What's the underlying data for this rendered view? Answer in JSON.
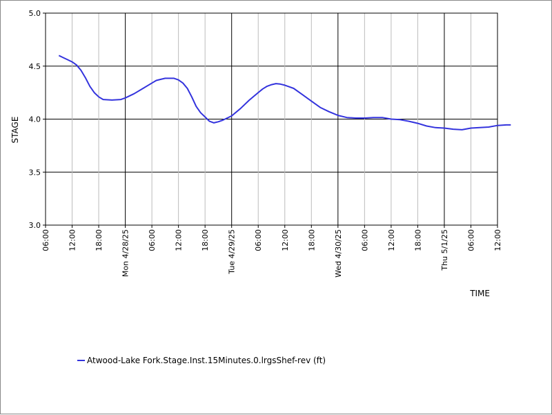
{
  "chart_data": {
    "type": "line",
    "xlabel": "TIME",
    "ylabel": "STAGE",
    "ylim": [
      3.0,
      5.0
    ],
    "y_ticks": [
      "3.0",
      "3.5",
      "4.0",
      "4.5",
      "5.0"
    ],
    "xlim": [
      "2025-04-27T06:00",
      "2025-05-01T12:00"
    ],
    "x_tick_labels": [
      "06:00",
      "12:00",
      "18:00",
      "Mon 4/28/25",
      "06:00",
      "12:00",
      "18:00",
      "Tue 4/29/25",
      "06:00",
      "12:00",
      "18:00",
      "Wed 4/30/25",
      "06:00",
      "12:00",
      "18:00",
      "Thu 5/1/25",
      "06:00",
      "12:00"
    ],
    "grid": true,
    "legend_position": "bottom-left",
    "colors": {
      "series": "#3333dd",
      "major_grid": "#000000",
      "minor_grid": "#bbbbbb"
    },
    "series": [
      {
        "name": "Atwood-Lake Fork.Stage.Inst.15Minutes.0.lrgsShef-rev (ft)",
        "points": [
          [
            "2025-04-27T09:00",
            4.6
          ],
          [
            "2025-04-27T10:00",
            4.58
          ],
          [
            "2025-04-27T11:00",
            4.56
          ],
          [
            "2025-04-27T12:00",
            4.54
          ],
          [
            "2025-04-27T13:00",
            4.51
          ],
          [
            "2025-04-27T14:00",
            4.46
          ],
          [
            "2025-04-27T15:00",
            4.39
          ],
          [
            "2025-04-27T16:00",
            4.31
          ],
          [
            "2025-04-27T17:00",
            4.25
          ],
          [
            "2025-04-27T18:00",
            4.21
          ],
          [
            "2025-04-27T19:00",
            4.185
          ],
          [
            "2025-04-27T21:00",
            4.18
          ],
          [
            "2025-04-27T23:00",
            4.185
          ],
          [
            "2025-04-28T00:00",
            4.2
          ],
          [
            "2025-04-28T02:00",
            4.24
          ],
          [
            "2025-04-28T04:00",
            4.29
          ],
          [
            "2025-04-28T06:00",
            4.34
          ],
          [
            "2025-04-28T07:00",
            4.365
          ],
          [
            "2025-04-28T08:00",
            4.375
          ],
          [
            "2025-04-28T09:00",
            4.385
          ],
          [
            "2025-04-28T11:00",
            4.385
          ],
          [
            "2025-04-28T12:00",
            4.37
          ],
          [
            "2025-04-28T13:00",
            4.34
          ],
          [
            "2025-04-28T14:00",
            4.29
          ],
          [
            "2025-04-28T15:00",
            4.21
          ],
          [
            "2025-04-28T16:00",
            4.12
          ],
          [
            "2025-04-28T17:00",
            4.06
          ],
          [
            "2025-04-28T18:00",
            4.02
          ],
          [
            "2025-04-28T19:00",
            3.98
          ],
          [
            "2025-04-28T20:00",
            3.965
          ],
          [
            "2025-04-28T21:00",
            3.975
          ],
          [
            "2025-04-28T22:00",
            3.99
          ],
          [
            "2025-04-29T00:00",
            4.03
          ],
          [
            "2025-04-29T02:00",
            4.1
          ],
          [
            "2025-04-29T04:00",
            4.18
          ],
          [
            "2025-04-29T06:00",
            4.25
          ],
          [
            "2025-04-29T07:00",
            4.285
          ],
          [
            "2025-04-29T08:00",
            4.31
          ],
          [
            "2025-04-29T09:00",
            4.325
          ],
          [
            "2025-04-29T10:00",
            4.335
          ],
          [
            "2025-04-29T11:00",
            4.33
          ],
          [
            "2025-04-29T12:00",
            4.32
          ],
          [
            "2025-04-29T14:00",
            4.29
          ],
          [
            "2025-04-29T16:00",
            4.23
          ],
          [
            "2025-04-29T18:00",
            4.17
          ],
          [
            "2025-04-29T20:00",
            4.11
          ],
          [
            "2025-04-29T22:00",
            4.07
          ],
          [
            "2025-04-30T00:00",
            4.035
          ],
          [
            "2025-04-30T02:00",
            4.015
          ],
          [
            "2025-04-30T04:00",
            4.01
          ],
          [
            "2025-04-30T06:00",
            4.01
          ],
          [
            "2025-04-30T08:00",
            4.015
          ],
          [
            "2025-04-30T10:00",
            4.015
          ],
          [
            "2025-04-30T12:00",
            4.0
          ],
          [
            "2025-04-30T14:00",
            3.995
          ],
          [
            "2025-04-30T16:00",
            3.98
          ],
          [
            "2025-04-30T18:00",
            3.96
          ],
          [
            "2025-04-30T20:00",
            3.935
          ],
          [
            "2025-04-30T22:00",
            3.92
          ],
          [
            "2025-05-01T00:00",
            3.915
          ],
          [
            "2025-05-01T02:00",
            3.905
          ],
          [
            "2025-05-01T04:00",
            3.9
          ],
          [
            "2025-05-01T06:00",
            3.915
          ],
          [
            "2025-05-01T08:00",
            3.92
          ],
          [
            "2025-05-01T10:00",
            3.925
          ],
          [
            "2025-05-01T12:00",
            3.94
          ],
          [
            "2025-05-01T14:00",
            3.945
          ],
          [
            "2025-05-01T15:00",
            3.945
          ]
        ]
      }
    ]
  }
}
